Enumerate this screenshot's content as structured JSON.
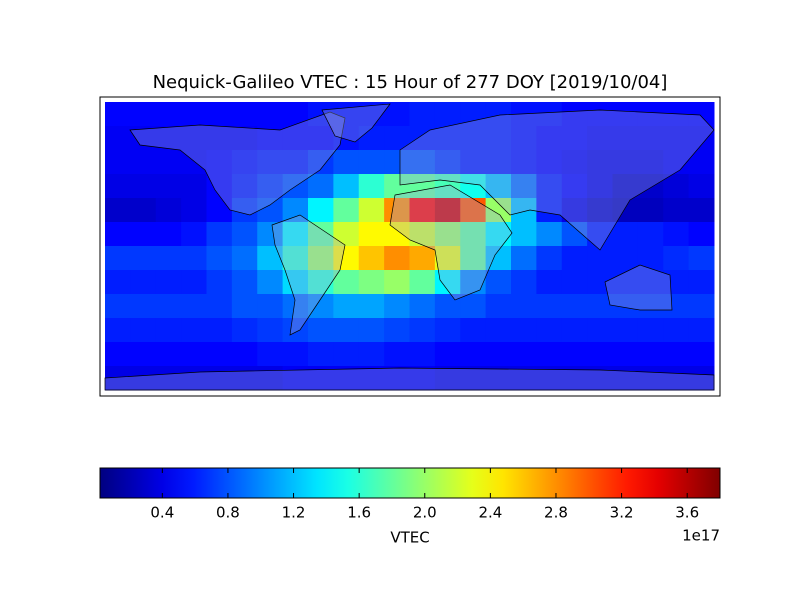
{
  "chart_data": {
    "type": "heatmap",
    "title": "Nequick-Galileo VTEC : 15 Hour of 277 DOY [2019/10/04]",
    "colormap": "jet",
    "z": [
      [
        0.5,
        0.5,
        0.5,
        0.5,
        0.5,
        0.5,
        0.5,
        0.5,
        0.55,
        0.55,
        0.55,
        0.55,
        0.6,
        0.6,
        0.6,
        0.6,
        0.55,
        0.55,
        0.5,
        0.5,
        0.5,
        0.5,
        0.5,
        0.5
      ],
      [
        0.45,
        0.45,
        0.45,
        0.45,
        0.45,
        0.45,
        0.5,
        0.5,
        0.5,
        0.55,
        0.6,
        0.6,
        0.6,
        0.6,
        0.6,
        0.6,
        0.55,
        0.5,
        0.5,
        0.45,
        0.45,
        0.45,
        0.45,
        0.45
      ],
      [
        0.45,
        0.45,
        0.45,
        0.45,
        0.5,
        0.55,
        0.6,
        0.6,
        0.7,
        0.8,
        0.8,
        0.8,
        0.8,
        0.7,
        0.6,
        0.6,
        0.55,
        0.5,
        0.45,
        0.4,
        0.4,
        0.4,
        0.45,
        0.45
      ],
      [
        0.4,
        0.4,
        0.4,
        0.4,
        0.5,
        0.6,
        0.7,
        0.8,
        0.9,
        1.2,
        1.6,
        1.8,
        1.8,
        1.7,
        1.5,
        1.2,
        0.9,
        0.6,
        0.5,
        0.4,
        0.3,
        0.3,
        0.35,
        0.4
      ],
      [
        0.3,
        0.3,
        0.35,
        0.4,
        0.5,
        0.7,
        0.8,
        1.0,
        1.4,
        1.8,
        2.2,
        2.8,
        3.3,
        3.5,
        3.0,
        2.0,
        1.2,
        0.6,
        0.4,
        0.3,
        0.25,
        0.25,
        0.3,
        0.3
      ],
      [
        0.5,
        0.5,
        0.5,
        0.55,
        0.7,
        0.8,
        1.0,
        1.4,
        1.8,
        2.2,
        2.4,
        2.4,
        2.2,
        2.0,
        1.8,
        1.4,
        1.2,
        1.0,
        0.8,
        0.6,
        0.6,
        0.6,
        0.55,
        0.5
      ],
      [
        0.7,
        0.7,
        0.7,
        0.7,
        0.8,
        0.9,
        1.2,
        1.6,
        2.0,
        2.4,
        2.6,
        2.8,
        2.7,
        2.3,
        1.8,
        1.2,
        0.9,
        0.7,
        0.6,
        0.6,
        0.6,
        0.6,
        0.65,
        0.7
      ],
      [
        0.6,
        0.6,
        0.6,
        0.6,
        0.7,
        0.8,
        1.0,
        1.3,
        1.6,
        1.8,
        1.9,
        2.0,
        1.8,
        1.4,
        1.0,
        0.8,
        0.7,
        0.6,
        0.6,
        0.6,
        0.6,
        0.6,
        0.6,
        0.6
      ],
      [
        0.7,
        0.7,
        0.7,
        0.7,
        0.7,
        0.8,
        0.8,
        0.9,
        1.0,
        1.1,
        1.1,
        1.0,
        0.9,
        0.8,
        0.8,
        0.7,
        0.7,
        0.7,
        0.7,
        0.7,
        0.7,
        0.7,
        0.7,
        0.7
      ],
      [
        0.6,
        0.6,
        0.6,
        0.6,
        0.6,
        0.65,
        0.7,
        0.75,
        0.8,
        0.8,
        0.8,
        0.75,
        0.7,
        0.65,
        0.6,
        0.6,
        0.6,
        0.6,
        0.6,
        0.6,
        0.6,
        0.6,
        0.6,
        0.6
      ],
      [
        0.5,
        0.5,
        0.5,
        0.5,
        0.5,
        0.5,
        0.55,
        0.55,
        0.6,
        0.6,
        0.6,
        0.55,
        0.55,
        0.5,
        0.5,
        0.5,
        0.5,
        0.5,
        0.5,
        0.5,
        0.5,
        0.5,
        0.5,
        0.5
      ],
      [
        0.4,
        0.4,
        0.4,
        0.4,
        0.4,
        0.4,
        0.4,
        0.45,
        0.45,
        0.45,
        0.45,
        0.45,
        0.45,
        0.4,
        0.4,
        0.4,
        0.4,
        0.4,
        0.4,
        0.4,
        0.4,
        0.4,
        0.4,
        0.4
      ]
    ],
    "colorbar": {
      "label": "VTEC",
      "offset_label": "1e17",
      "lim": [
        0.02,
        3.8
      ],
      "ticks": [
        0.4,
        0.8,
        1.2,
        1.6,
        {
          "value": 2,
          "label": "2.0"
        },
        2.4,
        2.8,
        3.2,
        3.6
      ]
    }
  }
}
